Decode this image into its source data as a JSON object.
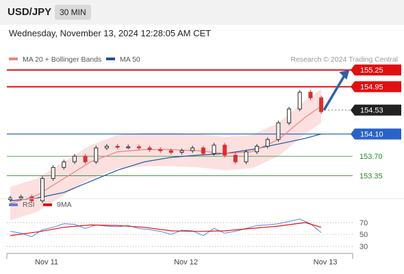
{
  "header": {
    "symbol": "USD/JPY",
    "interval": "30 MIN"
  },
  "datetime": "Wednesday, November 13, 2024 12:28:05 AM CET",
  "legend": [
    {
      "label": "MA 20 + Bollinger Bands",
      "color": "#f08080"
    },
    {
      "label": "MA 50",
      "color": "#1f4e9c"
    }
  ],
  "watermark": "Research © 2024 Trading Central",
  "rsi_legend": [
    {
      "label": "RSI",
      "color": "#5b7fe0"
    },
    {
      "label": "9MA",
      "color": "#e01010"
    }
  ],
  "chart_data": {
    "type": "line",
    "price_axis": {
      "ylim": [
        153.0,
        155.4
      ]
    },
    "levels": [
      {
        "label": "155.25",
        "value": 155.25,
        "kind": "resistance",
        "color": "#e01010"
      },
      {
        "label": "154.95",
        "value": 154.95,
        "kind": "resistance",
        "color": "#e01010"
      },
      {
        "label": "154.53",
        "value": 154.53,
        "kind": "last",
        "color": "#222222"
      },
      {
        "label": "154.10",
        "value": 154.1,
        "kind": "pivot",
        "color": "#2a62c9"
      },
      {
        "label": "153.70",
        "value": 153.7,
        "kind": "support",
        "color": "#228b22"
      },
      {
        "label": "153.35",
        "value": 153.35,
        "kind": "support",
        "color": "#228b22"
      }
    ],
    "price_series": {
      "name": "USD/JPY",
      "x": [
        0,
        4,
        8,
        12,
        16,
        20,
        24,
        28,
        32,
        36,
        40,
        44,
        48,
        52,
        56,
        60,
        64,
        68,
        72,
        76,
        80,
        84,
        88,
        92,
        96,
        100,
        104,
        108,
        112,
        116
      ],
      "values": [
        152.95,
        152.97,
        152.9,
        153.3,
        153.5,
        153.6,
        153.7,
        153.6,
        153.85,
        153.88,
        153.87,
        153.87,
        153.85,
        153.82,
        153.8,
        153.77,
        153.8,
        153.85,
        153.75,
        153.9,
        153.72,
        153.6,
        153.78,
        153.88,
        154.0,
        154.3,
        154.55,
        154.85,
        154.75,
        154.5
      ]
    },
    "ma20": {
      "name": "MA 20",
      "x": [
        0,
        10,
        20,
        30,
        40,
        50,
        60,
        70,
        80,
        90,
        100,
        110,
        116
      ],
      "values": [
        152.85,
        153.0,
        153.3,
        153.6,
        153.78,
        153.82,
        153.82,
        153.8,
        153.75,
        153.78,
        154.0,
        154.4,
        154.6
      ]
    },
    "ma50": {
      "name": "MA 50",
      "x": [
        0,
        10,
        20,
        30,
        40,
        50,
        60,
        70,
        80,
        90,
        100,
        110,
        116
      ],
      "values": [
        152.9,
        152.95,
        153.05,
        153.25,
        153.45,
        153.6,
        153.68,
        153.72,
        153.75,
        153.82,
        153.92,
        154.02,
        154.1
      ]
    },
    "projection": {
      "x": [
        116,
        126
      ],
      "values": [
        154.53,
        155.25
      ]
    },
    "rsi_axis": {
      "ylim": [
        20,
        85
      ],
      "ticks": [
        70,
        50,
        30
      ]
    },
    "rsi": {
      "name": "RSI",
      "x": [
        0,
        4,
        8,
        12,
        16,
        20,
        24,
        28,
        32,
        36,
        40,
        44,
        48,
        52,
        56,
        60,
        64,
        68,
        72,
        76,
        80,
        84,
        88,
        92,
        96,
        100,
        104,
        108,
        112,
        116
      ],
      "values": [
        55,
        52,
        46,
        58,
        62,
        68,
        67,
        60,
        66,
        64,
        63,
        65,
        60,
        58,
        55,
        50,
        57,
        56,
        48,
        60,
        52,
        55,
        60,
        65,
        66,
        68,
        72,
        76,
        68,
        53
      ]
    },
    "rsi_ma": {
      "name": "9MA",
      "x": [
        0,
        10,
        20,
        30,
        40,
        50,
        60,
        70,
        80,
        90,
        100,
        110,
        116
      ],
      "values": [
        48,
        54,
        62,
        66,
        65,
        62,
        56,
        55,
        56,
        60,
        64,
        70,
        62
      ]
    },
    "time_axis": {
      "x": [
        0,
        116
      ],
      "ticks": [
        {
          "label": "Nov 11",
          "x": 12
        },
        {
          "label": "Nov 12",
          "x": 64
        },
        {
          "label": "Nov 13",
          "x": 116
        }
      ]
    }
  }
}
